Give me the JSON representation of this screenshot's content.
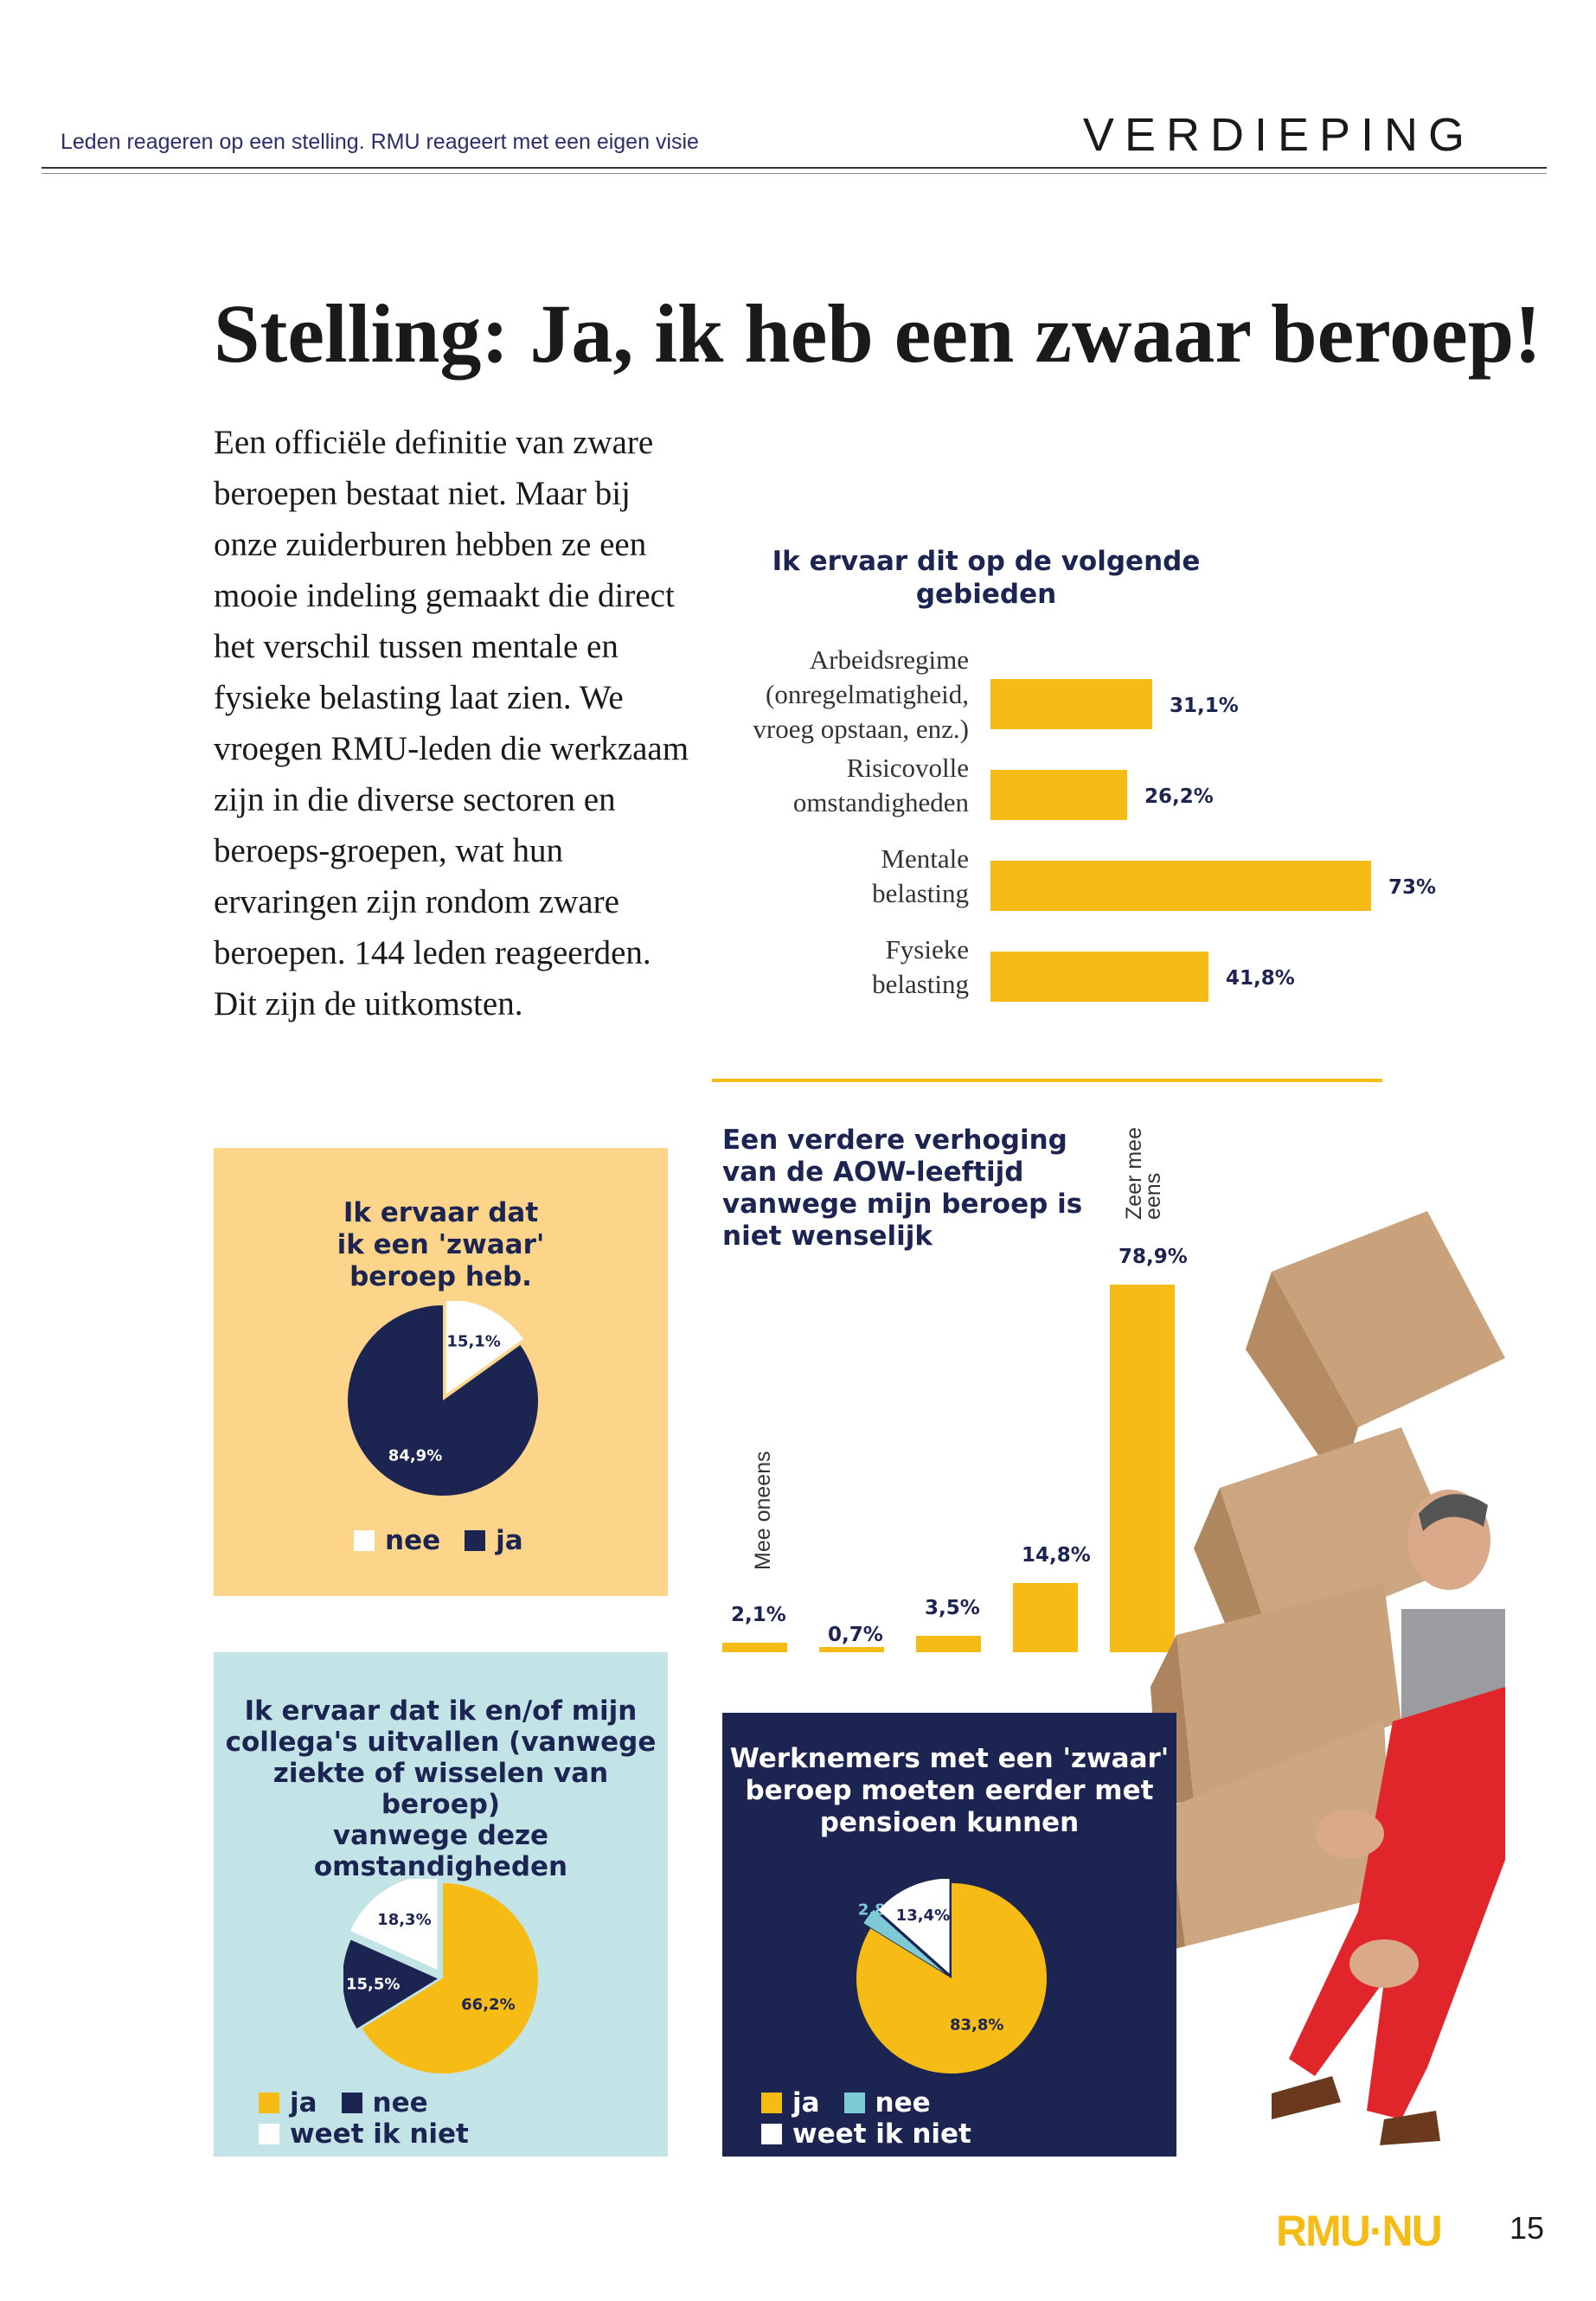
{
  "header": {
    "left": "Leden reageren op een stelling. RMU reageert met een eigen visie",
    "right": "VERDIEPING"
  },
  "title": "Stelling: Ja, ik heb een zwaar beroep!",
  "intro": "Een officiële definitie van zware beroepen bestaat niet. Maar bij onze zuiderburen hebben ze een mooie indeling gemaakt die direct het verschil tussen mentale en fysieke belasting laat zien. We vroegen RMU-leden die werkzaam zijn in die diverse sectoren en beroeps-groepen, wat hun ervaringen zijn rondom zware beroepen. 144 leden reageerden. Dit zijn de uitkomsten.",
  "colors": {
    "yellow": "#f7bb16",
    "navy": "#1c2452",
    "light_yellow": "#fcd48a",
    "light_blue": "#c3e4e6",
    "cyan": "#7ecbd6",
    "white": "#ffffff"
  },
  "chart_data": [
    {
      "type": "bar",
      "orientation": "horizontal",
      "title": "Ik ervaar dit op de volgende gebieden",
      "categories": [
        "Arbeidsregime (onregelmatigheid, vroeg opstaan, enz.)",
        "Risicovolle omstandigheden",
        "Mentale belasting",
        "Fysieke belasting"
      ],
      "category_lines": [
        [
          "Arbeidsregime",
          "(onregelmatigheid,",
          "vroeg opstaan, enz.)"
        ],
        [
          "Risicovolle",
          "omstandigheden"
        ],
        [
          "Mentale",
          "belasting"
        ],
        [
          "Fysieke",
          "belasting"
        ]
      ],
      "values": [
        31.1,
        26.2,
        73,
        41.8
      ],
      "labels": [
        "31,1%",
        "26,2%",
        "73%",
        "41,8%"
      ],
      "xlim": [
        0,
        73
      ]
    },
    {
      "type": "pie",
      "title": "Ik ervaar dat ik een 'zwaar' beroep heb.",
      "title_lines": [
        "Ik ervaar dat",
        "ik een 'zwaar'",
        "beroep heb."
      ],
      "categories": [
        "nee",
        "ja"
      ],
      "values": [
        15.1,
        84.9
      ],
      "labels": [
        "15,1%",
        "84,9%"
      ],
      "colors": [
        "#ffffff",
        "#1c2452"
      ]
    },
    {
      "type": "bar",
      "title": "Een verdere verhoging van de AOW-leeftijd vanwege mijn beroep is niet wenselijk",
      "title_lines": [
        "Een verdere verhoging",
        "van de AOW-leeftijd",
        "vanwege mijn beroep is",
        "niet wenselijk"
      ],
      "categories": [
        "Mee oneens",
        "",
        "",
        "",
        "Zeer mee eens"
      ],
      "values": [
        2.1,
        0.7,
        3.5,
        14.8,
        78.9
      ],
      "labels": [
        "2,1%",
        "0,7%",
        "3,5%",
        "14,8%",
        "78,9%"
      ],
      "axis_left_label": "Mee oneens",
      "axis_right_label": "Zeer mee eens",
      "ylim": [
        0,
        78.9
      ]
    },
    {
      "type": "pie",
      "title": "Ik ervaar dat ik en/of mijn collega's uitvallen (vanwege ziekte of wisselen van beroep) vanwege deze omstandigheden",
      "title_lines": [
        "Ik ervaar dat ik en/of mijn",
        "collega's uitvallen (vanwege",
        "ziekte of wisselen van beroep)",
        "vanwege deze omstandigheden"
      ],
      "categories": [
        "ja",
        "nee",
        "weet ik niet"
      ],
      "values": [
        66.2,
        15.5,
        18.3
      ],
      "labels": [
        "66,2%",
        "15,5%",
        "18,3%"
      ],
      "colors": [
        "#f7bb16",
        "#1c2452",
        "#ffffff"
      ]
    },
    {
      "type": "pie",
      "title": "Werknemers met een 'zwaar' beroep moeten eerder met pensioen kunnen",
      "title_lines": [
        "Werknemers met een 'zwaar'",
        "beroep moeten eerder met",
        "pensioen kunnen"
      ],
      "categories": [
        "ja",
        "nee",
        "weet ik niet"
      ],
      "values": [
        83.8,
        2.8,
        13.4
      ],
      "labels": [
        "83,8%",
        "2,8%",
        "13,4%"
      ],
      "colors": [
        "#f7bb16",
        "#7ecbd6",
        "#ffffff"
      ]
    }
  ],
  "footer": {
    "logo_a": "RMU",
    "logo_b": "NU",
    "page": "15"
  }
}
